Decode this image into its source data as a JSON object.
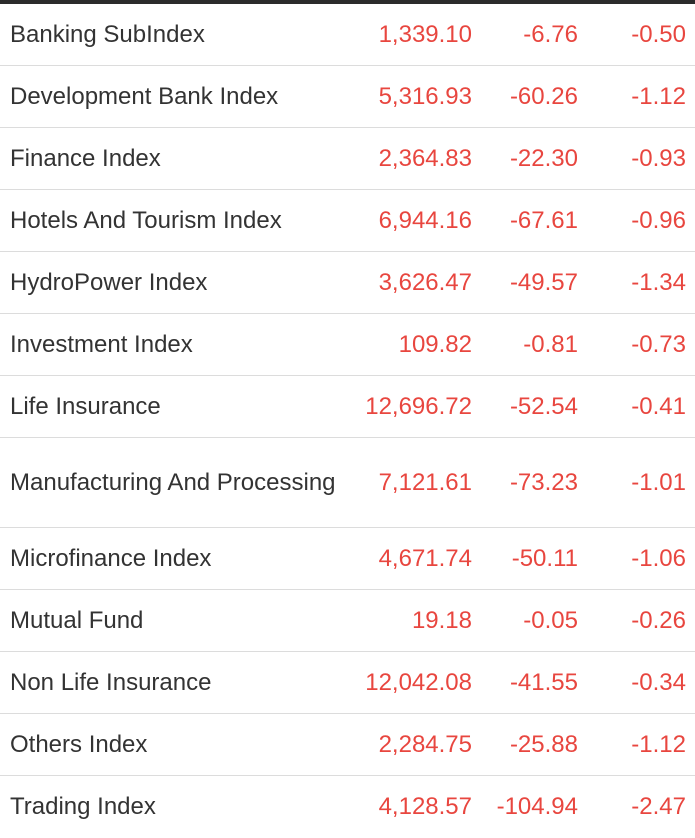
{
  "colors": {
    "negative": "#e8463f",
    "text": "#333333",
    "divider": "#dcdcdc"
  },
  "rows": [
    {
      "name": "Banking SubIndex",
      "value": "1,339.10",
      "change": "-6.76",
      "percent": "-0.50"
    },
    {
      "name": "Development Bank Index",
      "value": "5,316.93",
      "change": "-60.26",
      "percent": "-1.12"
    },
    {
      "name": "Finance Index",
      "value": "2,364.83",
      "change": "-22.30",
      "percent": "-0.93"
    },
    {
      "name": "Hotels And Tourism Index",
      "value": "6,944.16",
      "change": "-67.61",
      "percent": "-0.96"
    },
    {
      "name": "HydroPower Index",
      "value": "3,626.47",
      "change": "-49.57",
      "percent": "-1.34"
    },
    {
      "name": "Investment Index",
      "value": "109.82",
      "change": "-0.81",
      "percent": "-0.73"
    },
    {
      "name": "Life Insurance",
      "value": "12,696.72",
      "change": "-52.54",
      "percent": "-0.41"
    },
    {
      "name": "Manufacturing And Processing",
      "value": "7,121.61",
      "change": "-73.23",
      "percent": "-1.01"
    },
    {
      "name": "Microfinance Index",
      "value": "4,671.74",
      "change": "-50.11",
      "percent": "-1.06"
    },
    {
      "name": "Mutual Fund",
      "value": "19.18",
      "change": "-0.05",
      "percent": "-0.26"
    },
    {
      "name": "Non Life Insurance",
      "value": "12,042.08",
      "change": "-41.55",
      "percent": "-0.34"
    },
    {
      "name": "Others Index",
      "value": "2,284.75",
      "change": "-25.88",
      "percent": "-1.12"
    },
    {
      "name": "Trading Index",
      "value": "4,128.57",
      "change": "-104.94",
      "percent": "-2.47"
    }
  ]
}
